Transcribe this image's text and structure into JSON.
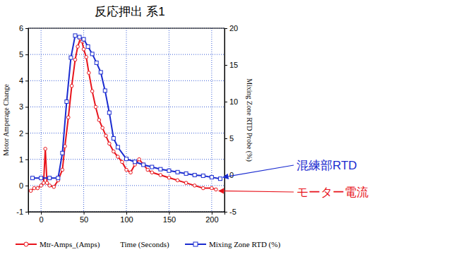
{
  "chart_data": {
    "type": "line",
    "title": "反応押出 系1",
    "x_label": "Time (Seconds)",
    "y_label": "Motor Amperage Change",
    "y2_label": "Mixing Zone RTD Probe (%)",
    "xlim": [
      -15,
      215
    ],
    "xticks": [
      0,
      50,
      100,
      150,
      200
    ],
    "ylim": [
      -1,
      6
    ],
    "yticks": [
      -1,
      0,
      1,
      2,
      3,
      4,
      5,
      6
    ],
    "y2lim": [
      -5,
      20
    ],
    "y2ticks": [
      -5,
      0,
      5,
      10,
      15,
      20
    ],
    "grid": true,
    "legend": "bottom",
    "annotations": [
      "混練部RTD",
      "モーター電流"
    ],
    "series": [
      {
        "name": "Mtr-Amps_(Amps)",
        "color": "#e8141c",
        "marker": "circle",
        "axis": "y",
        "x": [
          -12,
          -8,
          -4,
          0,
          3,
          5,
          7,
          10,
          15,
          20,
          25,
          28,
          32,
          36,
          40,
          43,
          46,
          48,
          50,
          53,
          56,
          60,
          64,
          68,
          72,
          76,
          80,
          85,
          90,
          95,
          100,
          105,
          110,
          115,
          120,
          125,
          130,
          140,
          150,
          160,
          170,
          180,
          190,
          200,
          205
        ],
        "values": [
          -0.2,
          -0.1,
          -0.1,
          0,
          0.1,
          1.4,
          0.1,
          0,
          -0.05,
          0.2,
          0.6,
          1.5,
          2.6,
          3.8,
          4.8,
          5.3,
          5.6,
          5.5,
          5.2,
          4.9,
          4.3,
          3.6,
          3.0,
          2.5,
          2.2,
          1.9,
          1.6,
          1.3,
          1.1,
          0.9,
          0.6,
          0.5,
          0.8,
          1.0,
          0.8,
          0.6,
          0.5,
          0.4,
          0.3,
          0.2,
          0.1,
          0,
          -0.1,
          -0.1,
          -0.15
        ]
      },
      {
        "name": "Mixing Zone RTD (%)",
        "color": "#1a2bd0",
        "marker": "square",
        "axis": "y2",
        "x": [
          -10,
          0,
          10,
          20,
          25,
          30,
          35,
          40,
          45,
          50,
          55,
          60,
          65,
          70,
          75,
          80,
          85,
          90,
          100,
          110,
          120,
          130,
          140,
          150,
          160,
          170,
          180,
          190,
          200,
          210
        ],
        "values": [
          -0.4,
          -0.4,
          -0.4,
          -0.4,
          3,
          10,
          16,
          19,
          18.8,
          18.5,
          17.5,
          16.5,
          15.3,
          14,
          11.5,
          8.5,
          5,
          3.8,
          2.2,
          1.8,
          1.4,
          1.1,
          0.8,
          0.6,
          0.4,
          0.2,
          0,
          -0.1,
          -0.3,
          -0.5
        ]
      }
    ]
  }
}
